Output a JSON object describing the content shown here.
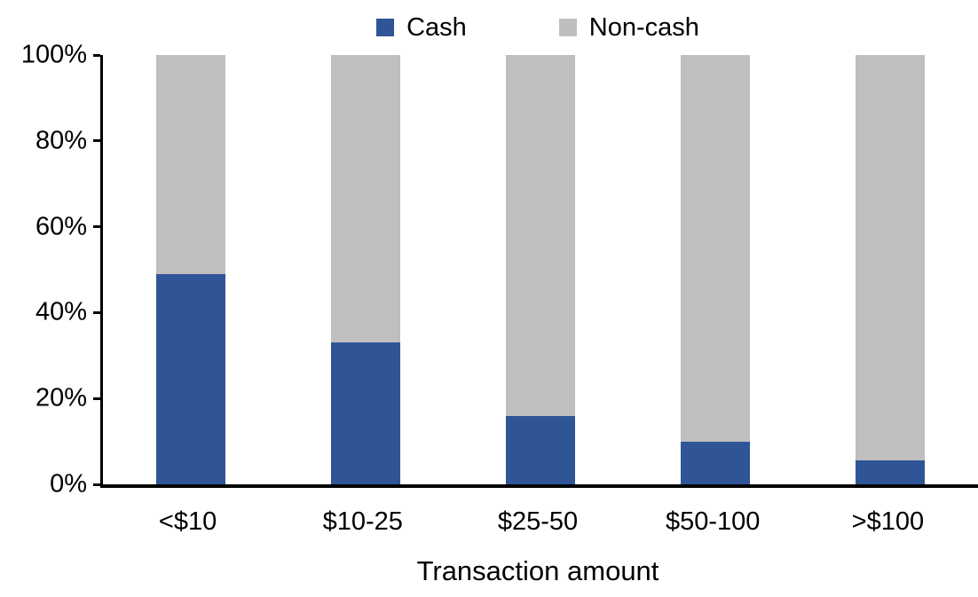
{
  "chart_data": {
    "type": "bar",
    "stacked": true,
    "title": "",
    "xlabel": "Transaction amount",
    "ylabel": "",
    "categories": [
      "<$10",
      "$10-25",
      "$25-50",
      "$50-100",
      ">$100"
    ],
    "series": [
      {
        "name": "Cash",
        "color": "#2F5597",
        "values": [
          49,
          33,
          16,
          10,
          5.5
        ]
      },
      {
        "name": "Non-cash",
        "color": "#BFBFBF",
        "values": [
          51,
          67,
          84,
          90,
          94.5
        ]
      }
    ],
    "ylim": [
      0,
      100
    ],
    "ytick_labels_top_down": [
      "100%",
      "80%",
      "60%",
      "40%",
      "20%",
      "0%"
    ],
    "grid": "off",
    "legend_position": "top-center"
  },
  "colors": {
    "cash": "#2F5597",
    "noncash": "#BFBFBF",
    "axis": "#000000",
    "background": "#FFFFFF"
  }
}
